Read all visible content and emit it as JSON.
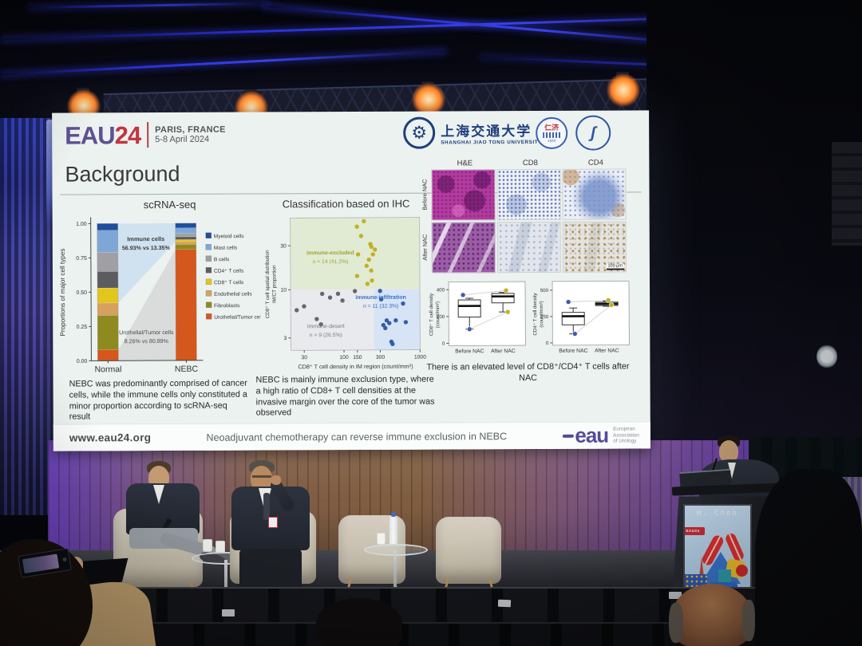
{
  "header": {
    "eau": "EAU",
    "year": "24",
    "city": "PARIS, FRANCE",
    "dates": "5-8 April 2024"
  },
  "logos": {
    "gear": "⚙",
    "univ_cn": "上海交通大学",
    "univ_en": "SHANGHAI  JIAO TONG  UNIVERSITY",
    "renji_cn": "仁济",
    "renji_year": "1844",
    "partner_mark": "ʃ"
  },
  "slide": {
    "title": "Background",
    "scrna": {
      "title": "scRNA-seq",
      "ylabel": "Proportions of major cell types",
      "yticks": [
        "1.00",
        "0.75",
        "0.50",
        "0.25",
        "0.00"
      ],
      "ytick_values": [
        1,
        0.75,
        0.5,
        0.25,
        0
      ],
      "categories": [
        "Normal",
        "NEBC"
      ],
      "legend": [
        {
          "label": "Myeloid cells",
          "color": "#1f4e9c"
        },
        {
          "label": "Mast cells",
          "color": "#7ea7d8"
        },
        {
          "label": "B cells",
          "color": "#a0a0a4"
        },
        {
          "label": "CD4⁺ T cells",
          "color": "#5c5c60"
        },
        {
          "label": "CD8⁺ T cells",
          "color": "#e2c51d"
        },
        {
          "label": "Endothelial cells",
          "color": "#d8a05e"
        },
        {
          "label": "Fibroblasts",
          "color": "#8f8a20"
        },
        {
          "label": "Urothelial/Tumor cells",
          "color": "#d4571e"
        }
      ],
      "stack_order_bottom_to_top": [
        "Urothelial/Tumor cells",
        "Fibroblasts",
        "Endothelial cells",
        "CD8⁺ T cells",
        "CD4⁺ T cells",
        "B cells",
        "Mast cells",
        "Myeloid cells"
      ],
      "stacks": {
        "Normal": [
          0.08,
          0.25,
          0.09,
          0.11,
          0.12,
          0.14,
          0.16,
          0.05
        ],
        "NEBC": [
          0.809,
          0.036,
          0.02,
          0.015,
          0.02,
          0.025,
          0.04,
          0.035
        ]
      },
      "annotation_immune": {
        "line1": "Immune cells",
        "line2": "56.93% vs 13.35%"
      },
      "annotation_tumor": {
        "line1": "Urothelial/Tumor cells",
        "line2": "8.26% vs 80.89%"
      },
      "caption": "NEBC was predominantly comprised of cancer cells, while the immune cells only constituted a minor proportion according to scRNA-seq result"
    },
    "ihc": {
      "title": "Classification based on IHC",
      "ylabel1": "CD8⁺ T cell spatial distribution",
      "ylabel2": "IM/CT proportion",
      "xlabel": "CD8⁺ T cell density in IM region (count/mm²)",
      "xticks": [
        30,
        100,
        150,
        300,
        1000
      ],
      "yticks": [
        3,
        10,
        30
      ],
      "groups": [
        {
          "name": "immune-excluded",
          "n": "n = 14 (41.2%)",
          "color": "#bfae1c",
          "label_color": "#9fa32f",
          "points": [
            [
              150,
              48
            ],
            [
              185,
              55
            ],
            [
              170,
              38
            ],
            [
              225,
              31
            ],
            [
              232,
              29
            ],
            [
              243,
              24
            ],
            [
              215,
              21
            ],
            [
              155,
              24
            ],
            [
              200,
              18
            ],
            [
              230,
              16
            ],
            [
              150,
              14
            ],
            [
              235,
              12.5
            ],
            [
              205,
              11.5
            ],
            [
              258,
              27
            ]
          ]
        },
        {
          "name": "immune-infiltration",
          "n": "n = 11 (32.3%)",
          "color": "#2d55a5",
          "label_color": "#3a6cc8",
          "points": [
            [
              300,
              9.6
            ],
            [
              330,
              4.1
            ],
            [
              350,
              3.8
            ],
            [
              365,
              4.6
            ],
            [
              395,
              4.3
            ],
            [
              420,
              2.7
            ],
            [
              435,
              2.55
            ],
            [
              480,
              4.6
            ],
            [
              600,
              7
            ],
            [
              650,
              4.4
            ],
            [
              310,
              7.8
            ]
          ]
        },
        {
          "name": "immune-desert",
          "n": "n = 9 (26.5%)",
          "color": "#606064",
          "label_color": "#7a7a80",
          "points": [
            [
              24,
              6
            ],
            [
              30,
              6.6
            ],
            [
              44,
              4.8
            ],
            [
              52,
              9
            ],
            [
              66,
              8.2
            ],
            [
              84,
              9
            ],
            [
              96,
              7.6
            ],
            [
              50,
              4.2
            ],
            [
              140,
              9.6
            ]
          ]
        }
      ],
      "caption": "NEBC is mainly immune exclusion type, where a high ratio of CD8+ T cell densities at the invasive margin over the core of the tumor was observed"
    },
    "histo": {
      "cols": [
        "H&E",
        "CD8",
        "CD4"
      ],
      "rows": [
        "Before NAC",
        "After NAC"
      ],
      "scalebar": "100 μm"
    },
    "boxplots": [
      {
        "ylabel1": "CD8⁺ T cell density",
        "ylabel2": "(count/mm²)",
        "ymax": 440,
        "yticks": [
          0,
          200,
          400
        ],
        "groups": [
          {
            "name": "Before NAC",
            "wlo": 105,
            "q1": 195,
            "med": 278,
            "q3": 323,
            "whi": 335,
            "pts": [
              {
                "v": 360,
                "c": "#3a5fa8",
                "dx": -8
              },
              {
                "v": 105,
                "c": "#3a5fa8",
                "dx": 0
              }
            ]
          },
          {
            "name": "After NAC",
            "wlo": 232,
            "q1": 300,
            "med": 348,
            "q3": 370,
            "whi": 378,
            "pts": [
              {
                "v": 392,
                "c": "#c4b11c",
                "dx": 4
              },
              {
                "v": 232,
                "c": "#c4b11c",
                "dx": 6
              }
            ]
          }
        ]
      },
      {
        "ylabel1": "CD4⁺ T cell density",
        "ylabel2": "(count/mm²)",
        "ymax": 560,
        "yticks": [
          0,
          250,
          500
        ],
        "groups": [
          {
            "name": "Before NAC",
            "wlo": 85,
            "q1": 170,
            "med": 252,
            "q3": 288,
            "whi": 330,
            "pts": [
              {
                "v": 388,
                "c": "#3a5fa8",
                "dx": -6
              },
              {
                "v": 85,
                "c": "#3a5fa8",
                "dx": 2
              }
            ]
          },
          {
            "name": "After NAC",
            "wlo": 345,
            "q1": 352,
            "med": 368,
            "q3": 384,
            "whi": 395,
            "pts": [
              {
                "v": 402,
                "c": "#c4b11c",
                "dx": 2
              },
              {
                "v": 358,
                "c": "#c4b11c",
                "dx": 6
              }
            ]
          }
        ]
      }
    ],
    "right_caption": "There is an elevated level of CD8⁺/CD4⁺  T cells after NAC",
    "footer": {
      "url": "www.eau24.org",
      "banner": "Neoadjuvant chemotherapy can reverse immune exclusion in NEBC",
      "logo": "eau",
      "logo_caption_1": "European",
      "logo_caption_2": "Association",
      "logo_caption_3": "of Urology"
    }
  },
  "podium": {
    "name": "H. Chen",
    "badge": "EAU24",
    "brand": "EAU"
  }
}
